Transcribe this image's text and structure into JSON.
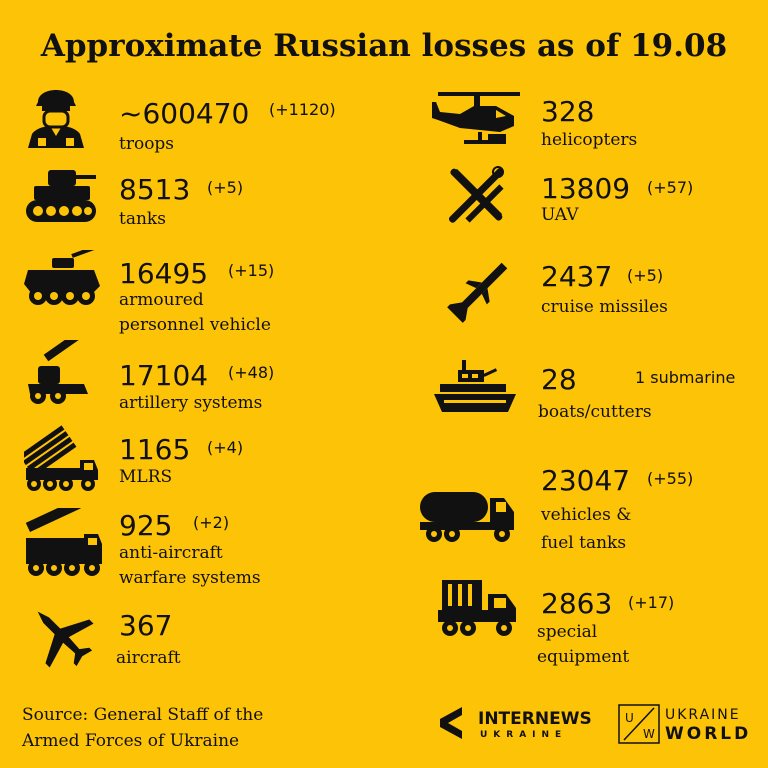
{
  "title": "Approximate Russian losses as of 19.08",
  "colors": {
    "background": "#FDC307",
    "ink": "#111111"
  },
  "items": [
    {
      "icon": "soldier-icon",
      "value": "~600470",
      "delta": "(+1120)",
      "label": [
        "troops"
      ]
    },
    {
      "icon": "tank-icon",
      "value": "8513",
      "delta": "(+5)",
      "label": [
        "tanks"
      ]
    },
    {
      "icon": "apc-icon",
      "value": "16495",
      "delta": "(+15)",
      "label": [
        "armoured",
        "personnel vehicle"
      ]
    },
    {
      "icon": "artillery-icon",
      "value": "17104",
      "delta": "(+48)",
      "label": [
        "artillery systems"
      ]
    },
    {
      "icon": "mlrs-icon",
      "value": "1165",
      "delta": "(+4)",
      "label": [
        "MLRS"
      ]
    },
    {
      "icon": "anti-aircraft-icon",
      "value": "925",
      "delta": "(+2)",
      "label": [
        "anti-aircraft",
        "warfare systems"
      ]
    },
    {
      "icon": "aircraft-icon",
      "value": "367",
      "delta": "",
      "label": [
        "aircraft"
      ]
    },
    {
      "icon": "helicopter-icon",
      "value": "328",
      "delta": "",
      "label": [
        "helicopters"
      ]
    },
    {
      "icon": "uav-icon",
      "value": "13809",
      "delta": "(+57)",
      "label": [
        "UAV"
      ]
    },
    {
      "icon": "cruise-missile-icon",
      "value": "2437",
      "delta": "(+5)",
      "label": [
        "cruise missiles"
      ]
    },
    {
      "icon": "boat-icon",
      "value": "28",
      "delta": "1 submarine",
      "label": [
        "boats/cutters"
      ]
    },
    {
      "icon": "fuel-truck-icon",
      "value": "23047",
      "delta": "(+55)",
      "label": [
        "vehicles &",
        "fuel tanks"
      ]
    },
    {
      "icon": "special-equipment-icon",
      "value": "2863",
      "delta": "(+17)",
      "label": [
        "special",
        "equipment"
      ]
    }
  ],
  "source": [
    "Source: General Staff of the",
    "Armed Forces of Ukraine"
  ],
  "logos": {
    "internews": {
      "name": "INTERNEWS",
      "sub": "UKRAINE"
    },
    "ukraine_world": {
      "mark_left": "U",
      "mark_right": "W",
      "top": "UKRAINE",
      "bottom": "WORLD"
    }
  }
}
